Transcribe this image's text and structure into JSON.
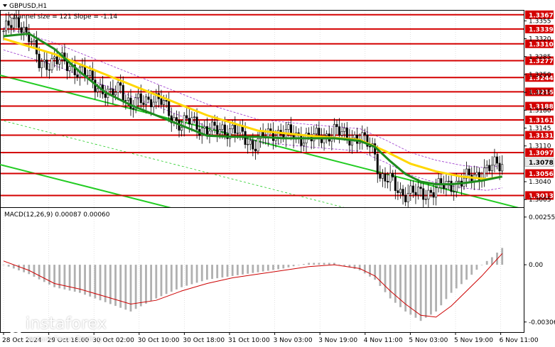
{
  "header": {
    "symbol": "GBPUSD,H1",
    "channel_info": "Channel size = 121 Slope = -1.14"
  },
  "colors": {
    "level_line": "#d40000",
    "level_label_bg": "#d40000",
    "current_price_bg": "#e8e8e8",
    "candles": "#000000",
    "ma_fast": "#ffd700",
    "ma_slow": "#1e8c1e",
    "channel": "#22cc22",
    "envelope": "#9933cc",
    "macd_hist": "#b0b0b0",
    "macd_signal": "#cc0000"
  },
  "chart_data": {
    "type": "candlestick",
    "price_axis": {
      "ylim": [
        1.299,
        1.3375
      ],
      "tick_labels": [
        "1.3355",
        "1.3320",
        "1.3285",
        "1.3250",
        "1.3215",
        "1.3180",
        "1.3145",
        "1.3110",
        "1.3040",
        "1.3005"
      ]
    },
    "support_resistance_levels": [
      1.3367,
      1.3339,
      1.331,
      1.3277,
      1.3244,
      1.3216,
      1.3188,
      1.3161,
      1.3131,
      1.3097,
      1.3056,
      1.3013
    ],
    "level_labels": [
      "1.3367",
      "1.3339",
      "1.3310",
      "1.3277",
      "1.3244",
      "1.3216",
      "1.3188",
      "1.3161",
      "1.3131",
      "1.3097",
      "1.3056",
      "1.3013"
    ],
    "current_price": "1.3078",
    "x_tick_labels": [
      "28 Oct 2024",
      "29 Oct 18:00",
      "30 Oct 02:00",
      "30 Oct 10:00",
      "30 Oct 18:00",
      "31 Oct 10:00",
      "3 Nov 03:00",
      "3 Nov 19:00",
      "4 Nov 11:00",
      "5 Nov 03:00",
      "5 Nov 19:00",
      "6 Nov 11:00"
    ],
    "close_path": [
      [
        0,
        1.3335
      ],
      [
        6,
        1.3355
      ],
      [
        10,
        1.3325
      ],
      [
        14,
        1.327
      ],
      [
        20,
        1.3278
      ],
      [
        26,
        1.3268
      ],
      [
        32,
        1.325
      ],
      [
        38,
        1.3225
      ],
      [
        42,
        1.3205
      ],
      [
        46,
        1.323
      ],
      [
        50,
        1.3185
      ],
      [
        54,
        1.3198
      ],
      [
        58,
        1.3205
      ],
      [
        62,
        1.3195
      ],
      [
        66,
        1.317
      ],
      [
        70,
        1.315
      ],
      [
        74,
        1.316
      ],
      [
        78,
        1.3145
      ],
      [
        82,
        1.3138
      ],
      [
        86,
        1.3145
      ],
      [
        90,
        1.314
      ],
      [
        94,
        1.313
      ],
      [
        98,
        1.3112
      ],
      [
        102,
        1.3125
      ],
      [
        106,
        1.3137
      ],
      [
        110,
        1.3135
      ],
      [
        114,
        1.313
      ],
      [
        118,
        1.3128
      ],
      [
        122,
        1.3125
      ],
      [
        126,
        1.313
      ],
      [
        130,
        1.314
      ],
      [
        134,
        1.313
      ],
      [
        138,
        1.3128
      ],
      [
        142,
        1.3118
      ],
      [
        146,
        1.31
      ],
      [
        148,
        1.305
      ],
      [
        152,
        1.304
      ],
      [
        156,
        1.302
      ],
      [
        160,
        1.3018
      ],
      [
        164,
        1.3015
      ],
      [
        168,
        1.3022
      ],
      [
        172,
        1.303
      ],
      [
        176,
        1.3035
      ],
      [
        180,
        1.304
      ],
      [
        184,
        1.305
      ],
      [
        188,
        1.3058
      ],
      [
        192,
        1.3068
      ],
      [
        196,
        1.3078
      ]
    ],
    "ma_fast": [
      [
        0,
        1.332
      ],
      [
        20,
        1.329
      ],
      [
        40,
        1.325
      ],
      [
        60,
        1.321
      ],
      [
        80,
        1.317
      ],
      [
        100,
        1.314
      ],
      [
        120,
        1.313
      ],
      [
        140,
        1.3122
      ],
      [
        150,
        1.31
      ],
      [
        160,
        1.3075
      ],
      [
        170,
        1.306
      ],
      [
        180,
        1.305
      ],
      [
        190,
        1.3045
      ],
      [
        196,
        1.305
      ]
    ],
    "ma_slow": [
      [
        0,
        1.3325
      ],
      [
        10,
        1.333
      ],
      [
        20,
        1.33
      ],
      [
        30,
        1.3255
      ],
      [
        40,
        1.3215
      ],
      [
        50,
        1.319
      ],
      [
        60,
        1.317
      ],
      [
        70,
        1.315
      ],
      [
        80,
        1.313
      ],
      [
        90,
        1.3128
      ],
      [
        100,
        1.3128
      ],
      [
        110,
        1.3125
      ],
      [
        120,
        1.3125
      ],
      [
        130,
        1.3125
      ],
      [
        140,
        1.312
      ],
      [
        146,
        1.3108
      ],
      [
        152,
        1.308
      ],
      [
        158,
        1.3055
      ],
      [
        164,
        1.304
      ],
      [
        170,
        1.3035
      ],
      [
        176,
        1.3035
      ],
      [
        182,
        1.3038
      ],
      [
        188,
        1.3042
      ],
      [
        196,
        1.305
      ]
    ],
    "macd": {
      "label": "MACD(12,26,9) 0.00087 0.00060",
      "tick_labels": [
        "0.00255",
        "0.00",
        "-0.00306"
      ],
      "ylim": [
        -0.0036,
        0.003
      ],
      "histogram_envelope": [
        [
          0,
          0.0
        ],
        [
          10,
          -0.0005
        ],
        [
          20,
          -0.0012
        ],
        [
          30,
          -0.0015
        ],
        [
          40,
          -0.002
        ],
        [
          50,
          -0.0025
        ],
        [
          60,
          -0.0018
        ],
        [
          70,
          -0.0012
        ],
        [
          80,
          -0.0008
        ],
        [
          90,
          -0.0006
        ],
        [
          100,
          -0.0004
        ],
        [
          110,
          -0.0002
        ],
        [
          120,
          0.0001
        ],
        [
          130,
          0.0001
        ],
        [
          140,
          -0.0003
        ],
        [
          146,
          -0.0008
        ],
        [
          152,
          -0.0018
        ],
        [
          158,
          -0.0025
        ],
        [
          164,
          -0.003
        ],
        [
          170,
          -0.0025
        ],
        [
          176,
          -0.0015
        ],
        [
          182,
          -0.0008
        ],
        [
          188,
          0.0
        ],
        [
          192,
          0.0004
        ],
        [
          196,
          0.0009
        ]
      ],
      "signal": [
        [
          0,
          0.0002
        ],
        [
          10,
          -0.0003
        ],
        [
          20,
          -0.001
        ],
        [
          30,
          -0.0013
        ],
        [
          40,
          -0.0017
        ],
        [
          50,
          -0.0021
        ],
        [
          60,
          -0.0019
        ],
        [
          70,
          -0.0014
        ],
        [
          80,
          -0.001
        ],
        [
          90,
          -0.0007
        ],
        [
          100,
          -0.0005
        ],
        [
          110,
          -0.0003
        ],
        [
          120,
          -0.0001
        ],
        [
          130,
          0.0
        ],
        [
          140,
          -0.0002
        ],
        [
          146,
          -0.0006
        ],
        [
          152,
          -0.0014
        ],
        [
          158,
          -0.0021
        ],
        [
          164,
          -0.0027
        ],
        [
          170,
          -0.0028
        ],
        [
          176,
          -0.0022
        ],
        [
          182,
          -0.0014
        ],
        [
          188,
          -0.0006
        ],
        [
          192,
          0.0
        ],
        [
          196,
          0.0006
        ]
      ]
    }
  },
  "watermark": {
    "name": "instaforex",
    "tagline": "Instant Forex Trading"
  }
}
